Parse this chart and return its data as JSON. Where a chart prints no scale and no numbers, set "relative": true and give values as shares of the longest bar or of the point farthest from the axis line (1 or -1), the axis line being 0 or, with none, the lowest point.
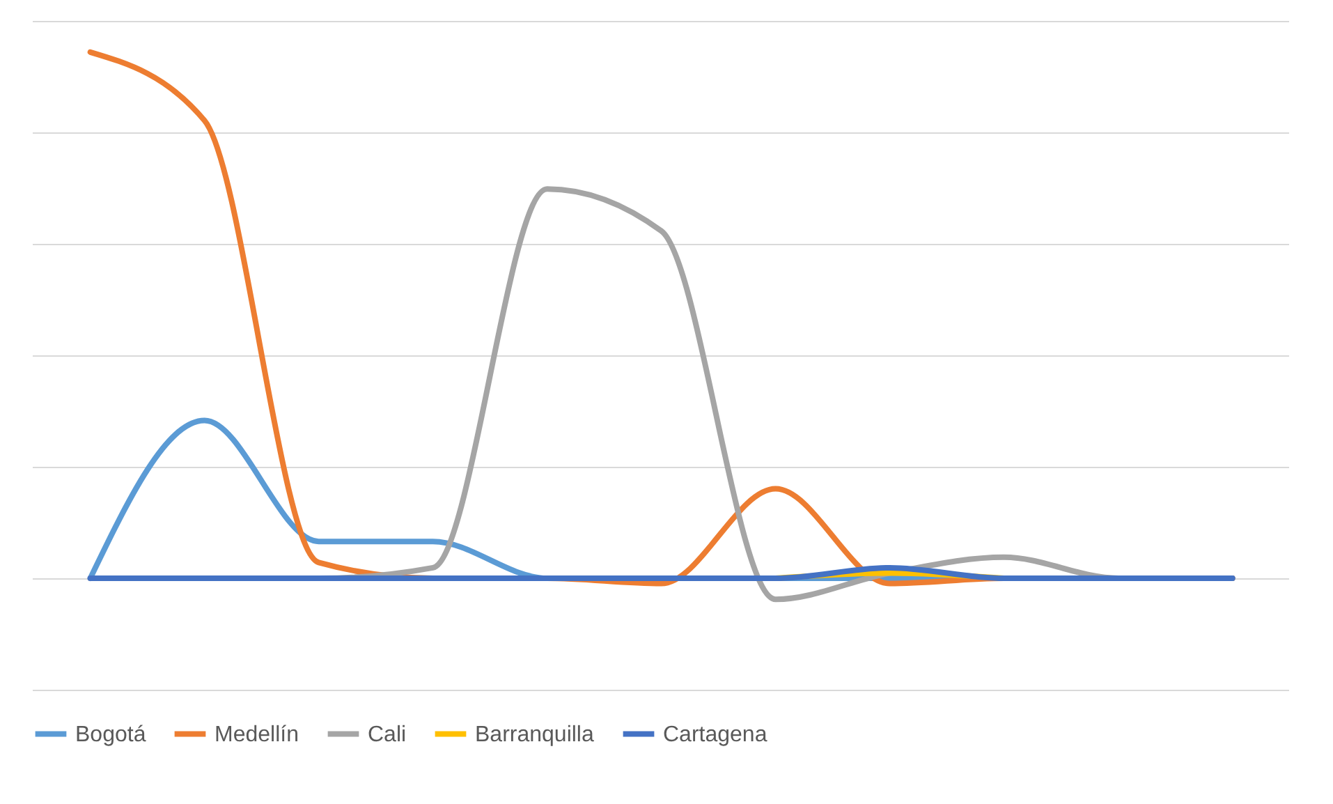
{
  "chart_data": {
    "type": "line",
    "relative": true,
    "categories": [
      null,
      null,
      null,
      null,
      null,
      null,
      null,
      null,
      null,
      null,
      null
    ],
    "grid": "y",
    "legend": "bottom",
    "line_style": "solid",
    "marker": "none",
    "series": [
      {
        "name": "Bogotá",
        "color": "#5b9bd5",
        "values": [
          0,
          0.3,
          0.07,
          0.07,
          0,
          0,
          0,
          0,
          0,
          0,
          0
        ]
      },
      {
        "name": "Medellín",
        "color": "#ed7d31",
        "values": [
          1,
          0.87,
          0.03,
          0,
          0,
          -0.01,
          0.17,
          -0.01,
          0,
          0,
          0
        ]
      },
      {
        "name": "Cali",
        "color": "#a5a5a5",
        "values": [
          0,
          0,
          0,
          0.02,
          0.74,
          0.66,
          -0.04,
          0.01,
          0.04,
          0,
          0
        ]
      },
      {
        "name": "Barranquilla",
        "color": "#ffc000",
        "values": [
          null,
          null,
          null,
          null,
          null,
          null,
          0,
          0.01,
          0,
          null,
          null
        ]
      },
      {
        "name": "Cartagena",
        "color": "#4472c4",
        "values": [
          0,
          0,
          0,
          0,
          0,
          0,
          0,
          0.02,
          0,
          0,
          0
        ]
      }
    ]
  }
}
